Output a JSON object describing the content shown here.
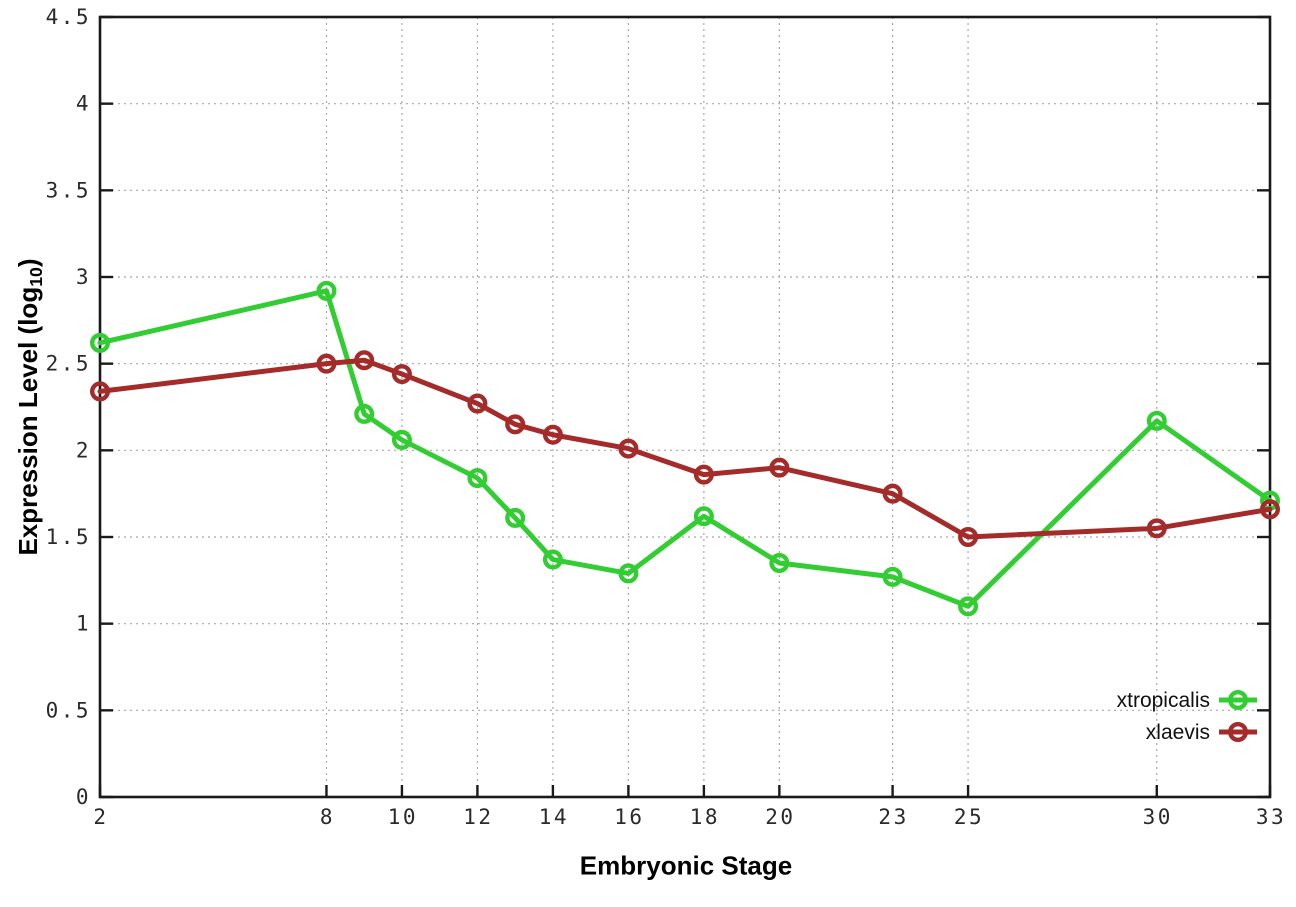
{
  "chart_data": {
    "type": "line",
    "xlabel": "Embryonic Stage",
    "ylabel": "Expression Level (log10)",
    "ylabel_parts": {
      "prefix": "Expression Level (log",
      "sub": "10",
      "suffix": ")"
    },
    "xlim": [
      2,
      33
    ],
    "ylim": [
      0,
      4.5
    ],
    "grid": true,
    "legend_position": "bottom-right",
    "x_ticks": [
      2,
      8,
      10,
      12,
      14,
      16,
      18,
      20,
      23,
      25,
      30,
      33
    ],
    "x_tick_labels": [
      "2",
      "8",
      "10",
      "12",
      "14",
      "16",
      "18",
      "20",
      "23",
      "25",
      "30",
      "33"
    ],
    "y_ticks": [
      0,
      0.5,
      1,
      1.5,
      2,
      2.5,
      3,
      3.5,
      4,
      4.5
    ],
    "y_tick_labels": [
      "0",
      "0.5",
      "1",
      "1.5",
      "2",
      "2.5",
      "3",
      "3.5",
      "4",
      "4.5"
    ],
    "x": [
      2,
      8,
      9,
      10,
      12,
      13,
      14,
      16,
      18,
      20,
      23,
      25,
      30,
      33
    ],
    "series": [
      {
        "name": "xtropicalis",
        "color": "#32cd32",
        "marker": "open-circle",
        "values": [
          2.62,
          2.92,
          2.21,
          2.06,
          1.84,
          1.61,
          1.37,
          1.29,
          1.62,
          1.35,
          1.27,
          1.1,
          2.17,
          1.71
        ]
      },
      {
        "name": "xlaevis",
        "color": "#a52a2a",
        "marker": "open-circle",
        "values": [
          2.34,
          2.5,
          2.52,
          2.44,
          2.27,
          2.15,
          2.09,
          2.01,
          1.86,
          1.9,
          1.75,
          1.5,
          1.55,
          1.66
        ]
      }
    ],
    "style": {
      "border_color": "#1a1a1a",
      "grid_color": "#a8a8a8",
      "tick_label_color": "#2a2a2a",
      "legend_text_color": "#111111"
    }
  }
}
